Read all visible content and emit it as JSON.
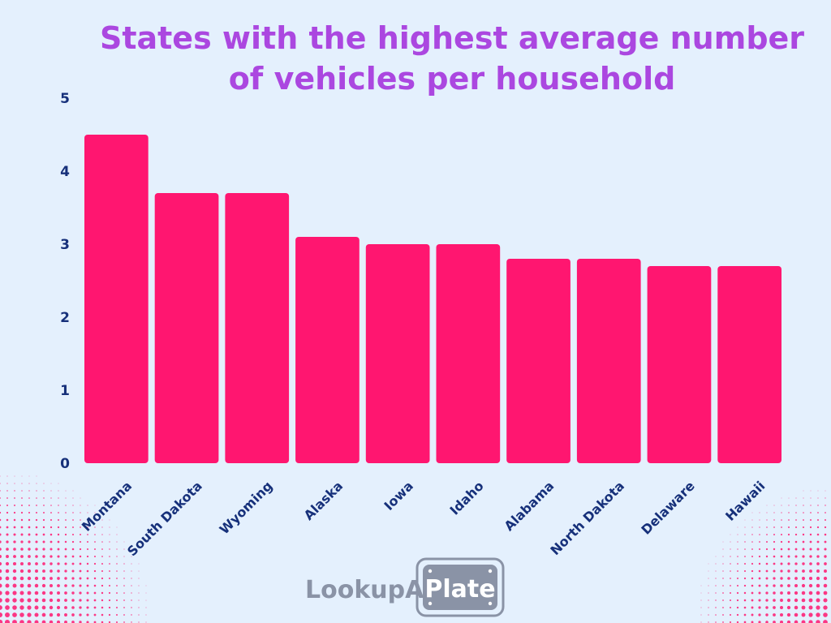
{
  "chart_data": {
    "type": "bar",
    "title_lines": [
      "States with the highest average number",
      "of vehicles per household"
    ],
    "categories": [
      "Montana",
      "South Dakota",
      "Wyoming",
      "Alaska",
      "Iowa",
      "Idaho",
      "Alabama",
      "North Dakota",
      "Delaware",
      "Hawaii"
    ],
    "values": [
      4.5,
      3.7,
      3.7,
      3.1,
      3.0,
      3.0,
      2.8,
      2.8,
      2.7,
      2.7
    ],
    "xlabel": "",
    "ylabel": "",
    "ylim": [
      0,
      5
    ],
    "yticks": [
      0,
      1,
      2,
      3,
      4,
      5
    ],
    "grid": false,
    "bar_color": "#ff1670",
    "title_color": "#ab47e0",
    "tick_color": "#16307a",
    "background_color": "#e4f0fd",
    "decoration_dot_color": "#ff1670"
  },
  "logo": {
    "text_left": "LookupA",
    "text_right": "Plate",
    "text_color": "#8a93a6",
    "plate_color": "#8a93a6",
    "plate_text_color": "#ffffff"
  }
}
